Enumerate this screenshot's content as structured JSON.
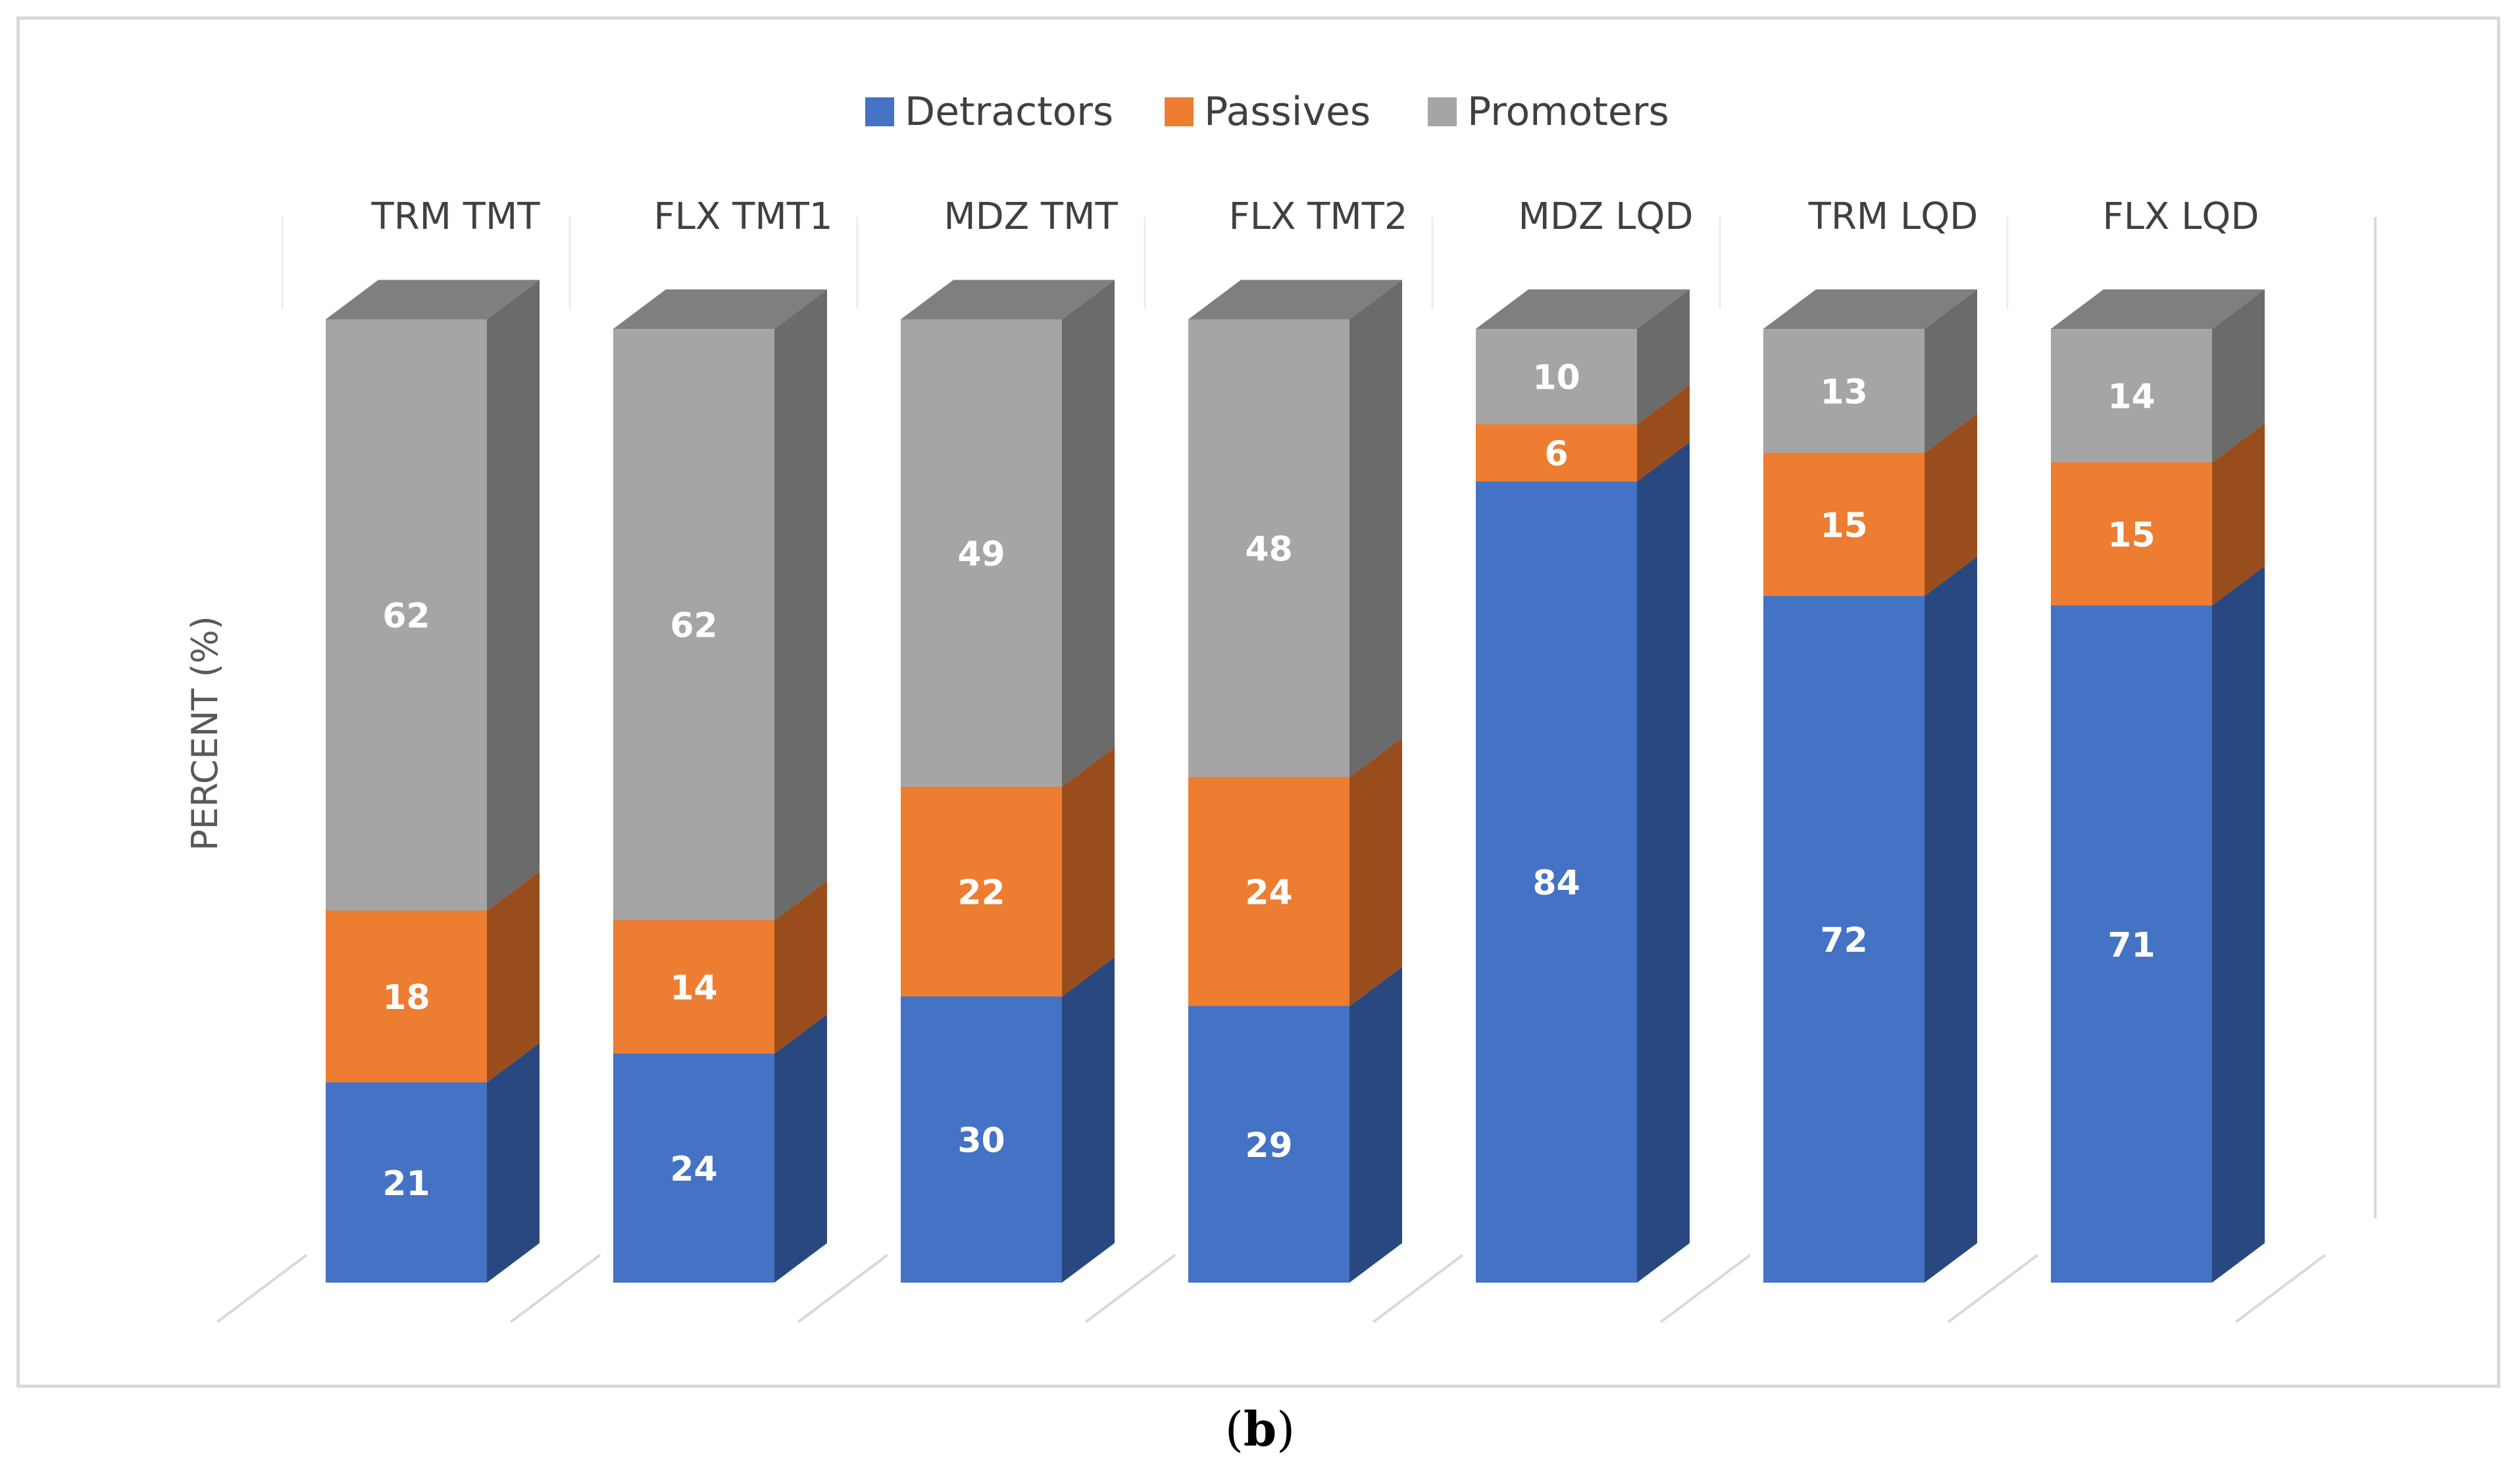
{
  "caption": {
    "open": "(",
    "letter": "b",
    "close": ")"
  },
  "chart_data": {
    "type": "bar",
    "stacked": true,
    "three_d": true,
    "title": "",
    "xlabel": "",
    "ylabel": "PERCENT (%)",
    "ylim": [
      0,
      100
    ],
    "grid": false,
    "legend_position": "top-center",
    "categories": [
      "TRM TMT",
      "FLX TMT1",
      "MDZ TMT",
      "FLX TMT2",
      "MDZ LQD",
      "TRM LQD",
      "FLX LQD"
    ],
    "series": [
      {
        "name": "Detractors",
        "color": "#4472c4",
        "side_color": "#2a4880",
        "values": [
          21,
          24,
          30,
          29,
          84,
          72,
          71
        ]
      },
      {
        "name": "Passives",
        "color": "#ed7d31",
        "side_color": "#9a4d1c",
        "values": [
          18,
          14,
          22,
          24,
          6,
          15,
          15
        ]
      },
      {
        "name": "Promoters",
        "color": "#a5a5a5",
        "side_color": "#6b6b6b",
        "values": [
          62,
          62,
          49,
          48,
          10,
          13,
          14
        ]
      }
    ],
    "top_color": "#7f7f7f",
    "data_labels": true
  }
}
